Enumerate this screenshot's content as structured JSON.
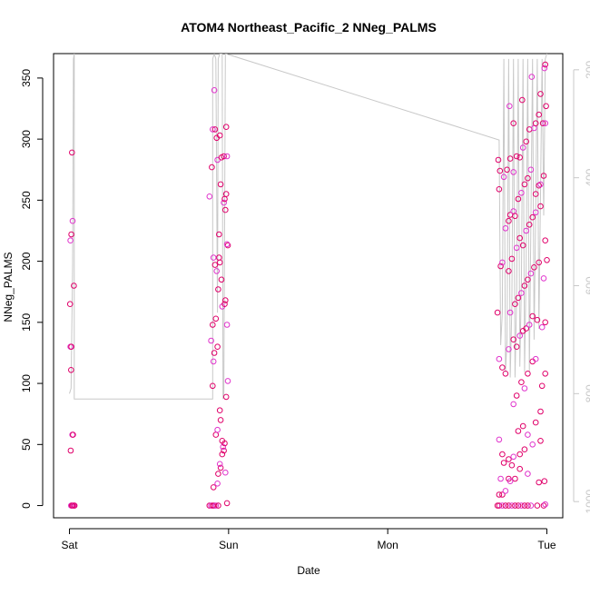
{
  "chart_data": {
    "type": "scatter",
    "title": "ATOM4 Northeast_Pacific_2 NNeg_PALMS",
    "xlabel": "Date",
    "ylabel": "NNeg_PALMS",
    "x_ticks": [
      {
        "value": 0,
        "label": "Sat"
      },
      {
        "value": 1,
        "label": "Sun"
      },
      {
        "value": 2,
        "label": "Mon"
      },
      {
        "value": 3,
        "label": "Tue"
      }
    ],
    "xlim": [
      -0.1,
      3.1
    ],
    "ylim": [
      -10,
      370
    ],
    "y_ticks": [
      0,
      50,
      100,
      150,
      200,
      250,
      300,
      350
    ],
    "y2_ticks": [
      200,
      400,
      600,
      800,
      1000
    ],
    "y2lim": [
      1030,
      170
    ],
    "grid": false,
    "colors": {
      "point_light": "#e033cc",
      "point_dark": "#e0006a",
      "depth_line": "#c8c8c8",
      "axis": "#000000",
      "y2_axis": "#c8c8c8"
    },
    "series": [
      {
        "values_note_x_in_days_from_Sat": true,
        "points": [
          [
            0.01,
            0
          ],
          [
            0.016,
            0
          ],
          [
            0.022,
            0
          ],
          [
            0.028,
            0
          ],
          [
            0.032,
            0
          ],
          [
            0.008,
            45
          ],
          [
            0.018,
            58
          ],
          [
            0.022,
            58
          ],
          [
            0.01,
            111
          ],
          [
            0.006,
            130
          ],
          [
            0.012,
            130
          ],
          [
            0.004,
            165
          ],
          [
            0.006,
            217
          ],
          [
            0.012,
            222
          ],
          [
            0.028,
            180
          ],
          [
            0.02,
            233
          ],
          [
            0.016,
            289
          ],
          [
            0.88,
            0
          ],
          [
            0.89,
            0
          ],
          [
            0.9,
            0
          ],
          [
            0.91,
            0
          ],
          [
            0.92,
            0
          ],
          [
            0.935,
            0
          ],
          [
            0.905,
            15
          ],
          [
            0.93,
            18
          ],
          [
            0.935,
            26
          ],
          [
            0.95,
            31
          ],
          [
            0.945,
            34
          ],
          [
            0.96,
            42
          ],
          [
            0.97,
            45
          ],
          [
            0.965,
            48
          ],
          [
            0.975,
            51
          ],
          [
            0.96,
            53
          ],
          [
            0.98,
            27
          ],
          [
            0.99,
            2
          ],
          [
            0.92,
            58
          ],
          [
            0.93,
            62
          ],
          [
            0.95,
            70
          ],
          [
            0.945,
            78
          ],
          [
            0.995,
            102
          ],
          [
            0.985,
            89
          ],
          [
            0.9,
            98
          ],
          [
            0.905,
            118
          ],
          [
            0.91,
            125
          ],
          [
            0.93,
            130
          ],
          [
            0.89,
            135
          ],
          [
            0.9,
            148
          ],
          [
            0.92,
            153
          ],
          [
            0.96,
            163
          ],
          [
            0.975,
            165
          ],
          [
            0.98,
            168
          ],
          [
            0.99,
            148
          ],
          [
            0.955,
            185
          ],
          [
            0.935,
            177
          ],
          [
            0.925,
            192
          ],
          [
            0.945,
            199
          ],
          [
            0.94,
            203
          ],
          [
            0.905,
            203
          ],
          [
            0.915,
            197
          ],
          [
            0.995,
            213
          ],
          [
            0.99,
            214
          ],
          [
            0.94,
            222
          ],
          [
            0.98,
            242
          ],
          [
            0.97,
            248
          ],
          [
            0.975,
            251
          ],
          [
            0.985,
            255
          ],
          [
            0.88,
            253
          ],
          [
            0.95,
            263
          ],
          [
            0.895,
            277
          ],
          [
            0.93,
            283
          ],
          [
            0.955,
            285
          ],
          [
            0.97,
            286
          ],
          [
            0.99,
            286
          ],
          [
            0.925,
            301
          ],
          [
            0.945,
            303
          ],
          [
            0.9,
            308
          ],
          [
            0.915,
            308
          ],
          [
            0.985,
            310
          ],
          [
            0.91,
            340
          ],
          [
            2.69,
            0
          ],
          [
            2.7,
            0
          ],
          [
            2.72,
            0
          ],
          [
            2.74,
            0
          ],
          [
            2.76,
            0
          ],
          [
            2.78,
            0
          ],
          [
            2.8,
            0
          ],
          [
            2.82,
            0
          ],
          [
            2.84,
            0
          ],
          [
            2.86,
            0
          ],
          [
            2.88,
            0
          ],
          [
            2.9,
            0
          ],
          [
            2.94,
            0
          ],
          [
            2.98,
            0
          ],
          [
            2.99,
            1
          ],
          [
            2.7,
            9
          ],
          [
            2.72,
            9
          ],
          [
            2.74,
            12
          ],
          [
            2.76,
            22
          ],
          [
            2.8,
            22
          ],
          [
            2.77,
            20
          ],
          [
            2.78,
            33
          ],
          [
            2.83,
            30
          ],
          [
            2.88,
            26
          ],
          [
            2.95,
            19
          ],
          [
            2.985,
            20
          ],
          [
            2.71,
            22
          ],
          [
            2.73,
            35
          ],
          [
            2.76,
            38
          ],
          [
            2.79,
            40
          ],
          [
            2.83,
            42
          ],
          [
            2.86,
            46
          ],
          [
            2.91,
            50
          ],
          [
            2.96,
            53
          ],
          [
            2.72,
            42
          ],
          [
            2.7,
            54
          ],
          [
            2.82,
            61
          ],
          [
            2.85,
            65
          ],
          [
            2.88,
            58
          ],
          [
            2.93,
            68
          ],
          [
            2.96,
            77
          ],
          [
            2.79,
            83
          ],
          [
            2.81,
            90
          ],
          [
            2.84,
            101
          ],
          [
            2.86,
            96
          ],
          [
            2.88,
            108
          ],
          [
            2.91,
            118
          ],
          [
            2.93,
            120
          ],
          [
            2.97,
            98
          ],
          [
            2.99,
            108
          ],
          [
            2.7,
            120
          ],
          [
            2.72,
            113
          ],
          [
            2.74,
            108
          ],
          [
            2.76,
            128
          ],
          [
            2.79,
            136
          ],
          [
            2.81,
            130
          ],
          [
            2.83,
            139
          ],
          [
            2.85,
            143
          ],
          [
            2.87,
            145
          ],
          [
            2.89,
            148
          ],
          [
            2.91,
            155
          ],
          [
            2.94,
            152
          ],
          [
            2.97,
            146
          ],
          [
            2.99,
            150
          ],
          [
            2.69,
            158
          ],
          [
            2.77,
            158
          ],
          [
            2.8,
            165
          ],
          [
            2.82,
            170
          ],
          [
            2.84,
            174
          ],
          [
            2.86,
            180
          ],
          [
            2.88,
            185
          ],
          [
            2.9,
            190
          ],
          [
            2.92,
            195
          ],
          [
            2.95,
            199
          ],
          [
            2.98,
            186
          ],
          [
            3.0,
            201
          ],
          [
            2.71,
            196
          ],
          [
            2.72,
            199
          ],
          [
            2.76,
            192
          ],
          [
            2.78,
            202
          ],
          [
            2.81,
            211
          ],
          [
            2.83,
            219
          ],
          [
            2.85,
            213
          ],
          [
            2.87,
            225
          ],
          [
            2.89,
            230
          ],
          [
            2.91,
            236
          ],
          [
            2.93,
            240
          ],
          [
            2.96,
            245
          ],
          [
            2.99,
            217
          ],
          [
            2.74,
            227
          ],
          [
            2.76,
            233
          ],
          [
            2.77,
            238
          ],
          [
            2.79,
            241
          ],
          [
            2.8,
            237
          ],
          [
            2.82,
            251
          ],
          [
            2.84,
            256
          ],
          [
            2.86,
            263
          ],
          [
            2.88,
            268
          ],
          [
            2.9,
            275
          ],
          [
            2.93,
            255
          ],
          [
            2.95,
            262
          ],
          [
            2.96,
            263
          ],
          [
            2.98,
            270
          ],
          [
            2.7,
            259
          ],
          [
            2.73,
            269
          ],
          [
            2.75,
            275
          ],
          [
            2.77,
            284
          ],
          [
            2.79,
            273
          ],
          [
            2.81,
            286
          ],
          [
            2.83,
            285
          ],
          [
            2.85,
            293
          ],
          [
            2.87,
            298
          ],
          [
            2.89,
            308
          ],
          [
            2.92,
            309
          ],
          [
            2.95,
            320
          ],
          [
            2.975,
            313
          ],
          [
            2.99,
            313
          ],
          [
            2.695,
            283
          ],
          [
            2.705,
            274
          ],
          [
            2.765,
            327
          ],
          [
            2.79,
            313
          ],
          [
            2.845,
            332
          ],
          [
            2.905,
            351
          ],
          [
            2.93,
            313
          ],
          [
            2.96,
            337
          ],
          [
            2.985,
            358
          ],
          [
            2.99,
            361
          ],
          [
            2.995,
            327
          ]
        ]
      }
    ],
    "depth_line": {
      "note": "secondary axis (depth) trace, values in y2 units",
      "points": [
        [
          0.0,
          800
        ],
        [
          0.01,
          790
        ],
        [
          0.02,
          560
        ],
        [
          0.025,
          180
        ],
        [
          0.03,
          170
        ],
        [
          0.03,
          810
        ],
        [
          0.06,
          810
        ],
        [
          0.5,
          810
        ],
        [
          0.9,
          810
        ],
        [
          0.9,
          180
        ],
        [
          0.91,
          170
        ],
        [
          0.92,
          180
        ],
        [
          0.93,
          650
        ],
        [
          0.935,
          180
        ],
        [
          0.945,
          170
        ],
        [
          0.96,
          170
        ],
        [
          0.965,
          810
        ],
        [
          0.97,
          800
        ],
        [
          0.98,
          170
        ],
        [
          2.7,
          330
        ],
        [
          2.71,
          710
        ],
        [
          2.72,
          650
        ],
        [
          2.73,
          180
        ],
        [
          2.74,
          760
        ],
        [
          2.75,
          700
        ],
        [
          2.76,
          180
        ],
        [
          2.77,
          770
        ],
        [
          2.78,
          640
        ],
        [
          2.79,
          180
        ],
        [
          2.8,
          770
        ],
        [
          2.81,
          620
        ],
        [
          2.82,
          180
        ],
        [
          2.83,
          750
        ],
        [
          2.84,
          600
        ],
        [
          2.85,
          180
        ],
        [
          2.86,
          760
        ],
        [
          2.87,
          560
        ],
        [
          2.88,
          180
        ],
        [
          2.89,
          760
        ],
        [
          2.9,
          480
        ],
        [
          2.91,
          180
        ],
        [
          2.92,
          700
        ],
        [
          2.93,
          460
        ],
        [
          2.94,
          180
        ],
        [
          2.95,
          680
        ],
        [
          2.96,
          430
        ],
        [
          2.97,
          180
        ],
        [
          2.98,
          470
        ],
        [
          2.99,
          180
        ],
        [
          3.0,
          170
        ]
      ]
    }
  }
}
